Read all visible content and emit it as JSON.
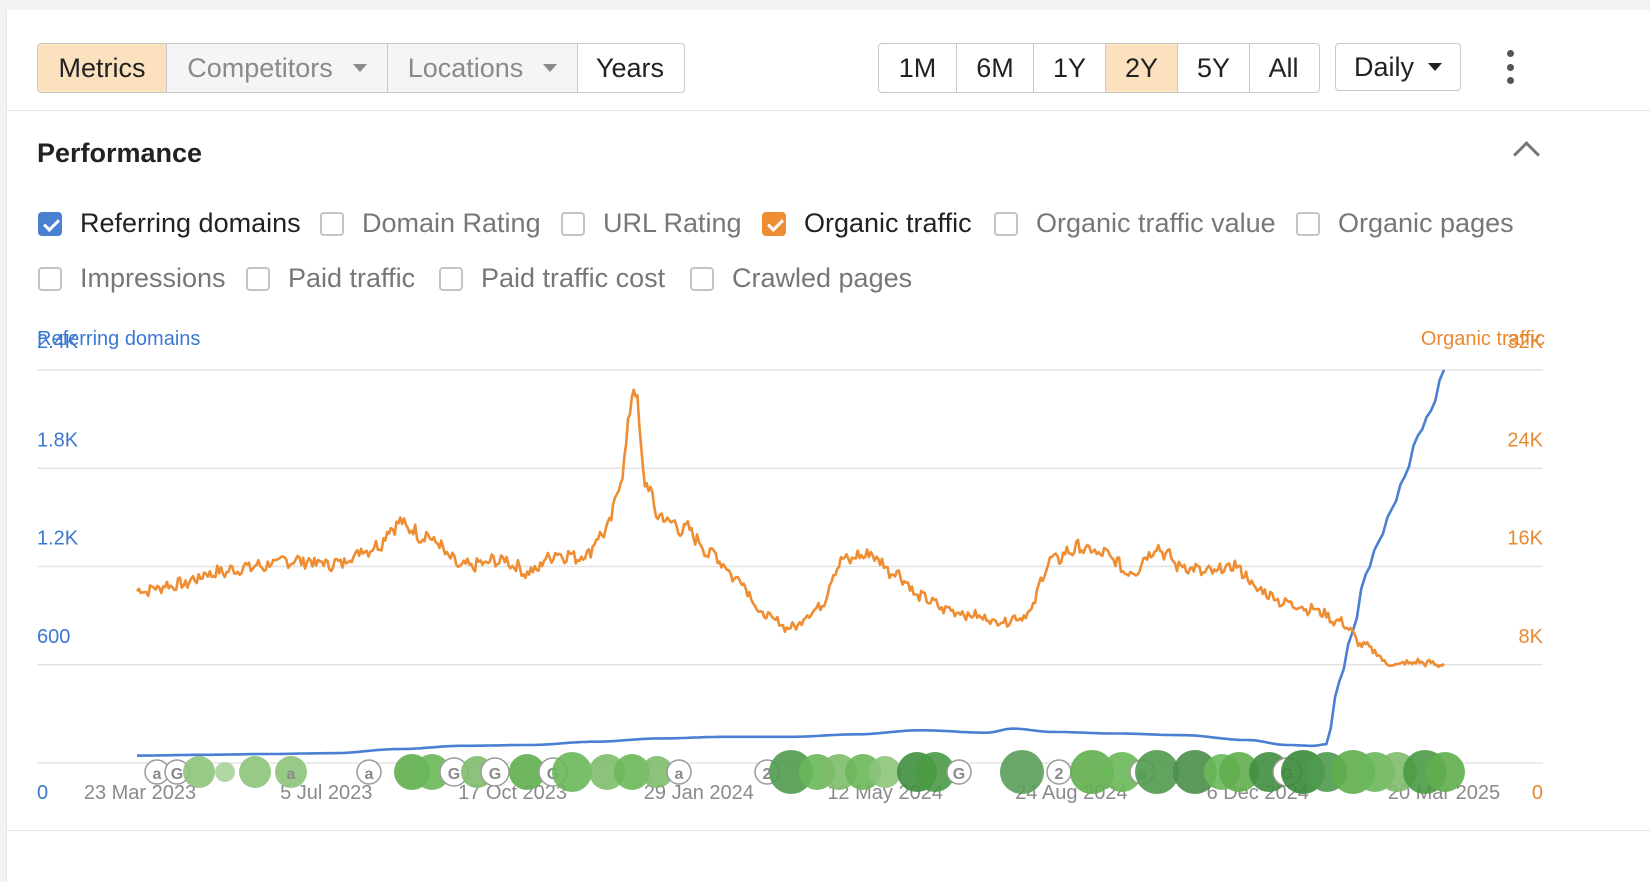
{
  "toolbar": {
    "tabs": [
      {
        "label": "Metrics",
        "state": "active"
      },
      {
        "label": "Competitors",
        "state": "dropdown"
      },
      {
        "label": "Locations",
        "state": "dropdown"
      },
      {
        "label": "Years",
        "state": "normal"
      }
    ],
    "ranges": [
      "1M",
      "6M",
      "1Y",
      "2Y",
      "5Y",
      "All"
    ],
    "active_range": "2Y",
    "granularity": "Daily"
  },
  "section": {
    "title": "Performance"
  },
  "metrics": [
    {
      "label": "Referring domains",
      "checked": true,
      "color": "#4a7fd1"
    },
    {
      "label": "Domain Rating",
      "checked": false
    },
    {
      "label": "URL Rating",
      "checked": false
    },
    {
      "label": "Organic traffic",
      "checked": true,
      "color": "#ef8d32"
    },
    {
      "label": "Organic traffic value",
      "checked": false
    },
    {
      "label": "Organic pages",
      "checked": false
    },
    {
      "label": "Impressions",
      "checked": false
    },
    {
      "label": "Paid traffic",
      "checked": false
    },
    {
      "label": "Paid traffic cost",
      "checked": false
    },
    {
      "label": "Crawled pages",
      "checked": false
    }
  ],
  "chart_data": {
    "type": "line",
    "left_axis": {
      "title": "Referring domains",
      "ticks": [
        "0",
        "600",
        "1.2K",
        "1.8K",
        "2.4K"
      ],
      "range": [
        0,
        2400
      ],
      "color": "#3b79d0"
    },
    "right_axis": {
      "title": "Organic traffic",
      "ticks": [
        "0",
        "8K",
        "16K",
        "24K",
        "32K"
      ],
      "range": [
        0,
        32000
      ],
      "color": "#e8892f"
    },
    "x_ticks": [
      "23 Mar 2023",
      "5 Jul 2023",
      "17 Oct 2023",
      "29 Jan 2024",
      "12 May 2024",
      "24 Aug 2024",
      "6 Dec 2024",
      "20 Mar 2025"
    ],
    "grid": true,
    "series": [
      {
        "name": "Referring domains",
        "axis": "left",
        "color": "#4a7fd1",
        "x": [
          0,
          0.05,
          0.1,
          0.15,
          0.2,
          0.25,
          0.3,
          0.35,
          0.4,
          0.45,
          0.5,
          0.55,
          0.6,
          0.65,
          0.67,
          0.7,
          0.75,
          0.8,
          0.85,
          0.88,
          0.9,
          0.91,
          0.92,
          0.93,
          0.94,
          0.95,
          0.96,
          0.97,
          0.98,
          0.99,
          1.0
        ],
        "values": [
          45,
          50,
          55,
          60,
          85,
          105,
          110,
          130,
          150,
          160,
          160,
          175,
          200,
          185,
          210,
          190,
          180,
          170,
          140,
          110,
          105,
          115,
          500,
          800,
          1150,
          1350,
          1550,
          1750,
          2000,
          2150,
          2400
        ]
      },
      {
        "name": "Organic traffic",
        "axis": "right",
        "color": "#ef8d32",
        "x": [
          0,
          0.03,
          0.06,
          0.09,
          0.12,
          0.15,
          0.18,
          0.2,
          0.22,
          0.25,
          0.28,
          0.3,
          0.32,
          0.34,
          0.36,
          0.37,
          0.38,
          0.39,
          0.4,
          0.42,
          0.44,
          0.46,
          0.48,
          0.5,
          0.52,
          0.54,
          0.56,
          0.58,
          0.6,
          0.62,
          0.64,
          0.66,
          0.68,
          0.7,
          0.72,
          0.74,
          0.76,
          0.78,
          0.8,
          0.82,
          0.84,
          0.86,
          0.88,
          0.9,
          0.92,
          0.94,
          0.96,
          0.98,
          1.0
        ],
        "values": [
          14000,
          14500,
          15500,
          16000,
          16500,
          16200,
          17500,
          19500,
          18500,
          16000,
          16500,
          15500,
          17000,
          16800,
          19000,
          23000,
          30500,
          22500,
          20000,
          19000,
          17000,
          15000,
          12000,
          11000,
          12500,
          16500,
          17000,
          15500,
          13500,
          12500,
          12000,
          11500,
          12000,
          16500,
          17500,
          17000,
          15500,
          17500,
          16000,
          15500,
          16000,
          14000,
          13000,
          12500,
          11500,
          9500,
          8000,
          8200,
          8000
        ]
      }
    ],
    "events_note_icons": [
      "a",
      "G",
      "2"
    ]
  }
}
